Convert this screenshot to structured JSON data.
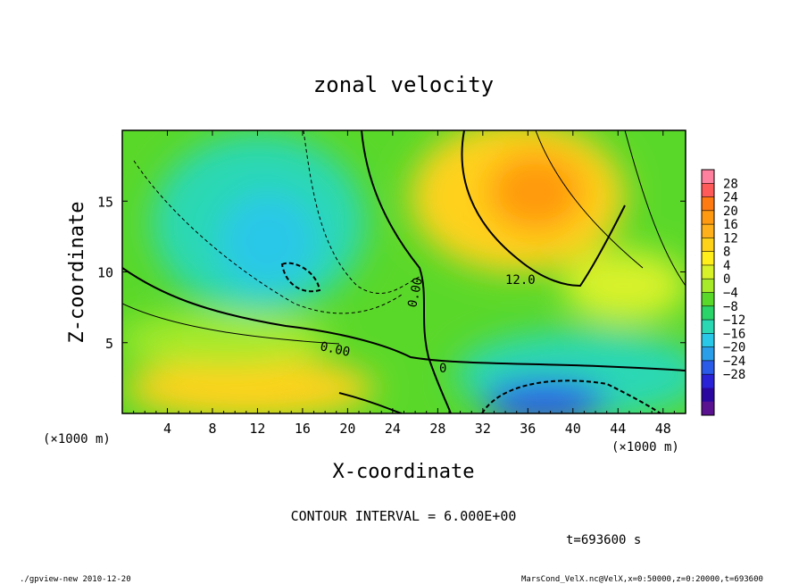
{
  "chart_data": {
    "type": "heatmap",
    "title": "zonal velocity",
    "xlabel": "X-coordinate",
    "ylabel": "Z-coordinate",
    "x_unit_label": "(×1000 m)",
    "y_unit_label": "(×1000 m)",
    "xlim": [
      0,
      50
    ],
    "ylim": [
      0,
      20
    ],
    "x_ticks": [
      4,
      8,
      12,
      16,
      20,
      24,
      28,
      32,
      36,
      40,
      44,
      48
    ],
    "y_ticks": [
      5,
      10,
      15
    ],
    "colorbar": {
      "levels": [
        28,
        24,
        20,
        16,
        12,
        8,
        4,
        0,
        -4,
        -8,
        -12,
        -16,
        -20,
        -24,
        -28
      ],
      "level_labels": [
        "28",
        "24",
        "20",
        "16",
        "12",
        "8",
        "4",
        "0",
        "−4",
        "−8",
        "−12",
        "−16",
        "−20",
        "−24",
        "−28"
      ],
      "colors": [
        "#ff7f9f",
        "#ff5a5a",
        "#ff7a10",
        "#ff9a10",
        "#ffb01a",
        "#ffd21a",
        "#ffee1a",
        "#d8f22a",
        "#a6ea2a",
        "#5ad82a",
        "#2ad468",
        "#2ad8b4",
        "#2ac8e8",
        "#2a9ee8",
        "#2a5ae8",
        "#2a22d6",
        "#2a08a0",
        "#5a1290"
      ]
    },
    "contour_labels": [
      "0.00",
      "0.00",
      "12.0",
      "0"
    ],
    "contour_interval_text": "CONTOUR INTERVAL = 6.000E+00",
    "time_text": "t=693600 s",
    "footer_left": "./gpview-new  2010-12-20",
    "footer_right": "MarsCond_VelX.nc@VelX,x=0:50000,z=0:20000,t=693600"
  }
}
